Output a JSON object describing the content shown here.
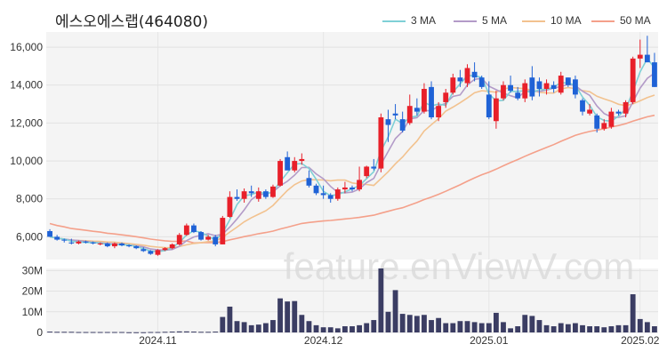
{
  "title": "에스오에스랩(464080)",
  "watermark": "feature.enViewV.com",
  "legend": [
    {
      "label": "3 MA",
      "color": "#7fd0d6"
    },
    {
      "label": "5 MA",
      "color": "#b39bc8"
    },
    {
      "label": "10 MA",
      "color": "#f2c28f"
    },
    {
      "label": "50 MA",
      "color": "#f4a08a"
    }
  ],
  "colors": {
    "up": "#e8202a",
    "down": "#1f62d6",
    "volume": "#3b3d63",
    "grid": "#e6e6e6",
    "plot_bg": "#f4f4f4"
  },
  "chart_data": {
    "type": "candlestick",
    "price_axis": {
      "ticks": [
        6000,
        8000,
        10000,
        12000,
        14000,
        16000
      ],
      "tick_labels": [
        "6,000",
        "8,000",
        "10,000",
        "12,000",
        "14,000",
        "16,000"
      ],
      "range": [
        4800,
        16800
      ]
    },
    "volume_axis": {
      "ticks": [
        0,
        10,
        20,
        30
      ],
      "tick_labels": [
        "0",
        "10M",
        "20M",
        "30M"
      ],
      "range": [
        0,
        31
      ],
      "unit": "M"
    },
    "x_tick_labels": [
      {
        "label": "2024.11",
        "index": 15
      },
      {
        "label": "2024.12",
        "index": 38
      },
      {
        "label": "2025.01",
        "index": 61
      },
      {
        "label": "2025.02",
        "index": 82
      }
    ],
    "candles": [
      [
        6300,
        6400,
        6000,
        6000
      ],
      [
        6000,
        6100,
        5800,
        5850
      ],
      [
        5850,
        5900,
        5700,
        5800
      ],
      [
        5700,
        5900,
        5600,
        5650
      ],
      [
        5650,
        5800,
        5600,
        5750
      ],
      [
        5750,
        5800,
        5650,
        5700
      ],
      [
        5700,
        5750,
        5600,
        5650
      ],
      [
        5600,
        5700,
        5550,
        5650
      ],
      [
        5650,
        5700,
        5450,
        5500
      ],
      [
        5500,
        5700,
        5400,
        5650
      ],
      [
        5650,
        5700,
        5500,
        5550
      ],
      [
        5550,
        5600,
        5450,
        5500
      ],
      [
        5500,
        5550,
        5350,
        5400
      ],
      [
        5350,
        5450,
        5200,
        5250
      ],
      [
        5250,
        5300,
        5050,
        5100
      ],
      [
        5050,
        5350,
        5000,
        5300
      ],
      [
        5300,
        5450,
        5250,
        5400
      ],
      [
        5400,
        5650,
        5350,
        5600
      ],
      [
        5600,
        6200,
        5550,
        6100
      ],
      [
        6100,
        6700,
        6050,
        6600
      ],
      [
        6600,
        6700,
        6200,
        6250
      ],
      [
        6250,
        6300,
        5800,
        5850
      ],
      [
        5850,
        6100,
        5800,
        6000
      ],
      [
        6000,
        6100,
        5500,
        5600
      ],
      [
        5600,
        7100,
        5600,
        7000
      ],
      [
        7050,
        8400,
        7000,
        8100
      ],
      [
        8100,
        8500,
        7900,
        8000
      ],
      [
        8000,
        8550,
        7800,
        8400
      ],
      [
        8400,
        8700,
        8100,
        8300
      ],
      [
        8000,
        8600,
        7850,
        8400
      ],
      [
        8400,
        8500,
        8000,
        8100
      ],
      [
        8100,
        8750,
        8050,
        8650
      ],
      [
        8700,
        10100,
        8650,
        10000
      ],
      [
        10200,
        10500,
        9600,
        9500
      ],
      [
        9500,
        10200,
        9400,
        10000
      ],
      [
        10000,
        10400,
        9800,
        10100
      ],
      [
        9100,
        9500,
        8600,
        8700
      ],
      [
        8700,
        8800,
        8200,
        8300
      ],
      [
        8300,
        8700,
        8000,
        8200
      ],
      [
        8200,
        8300,
        7800,
        8000
      ],
      [
        8000,
        8600,
        7900,
        8500
      ],
      [
        8500,
        8900,
        8300,
        8600
      ],
      [
        8600,
        8700,
        8400,
        8500
      ],
      [
        8500,
        9700,
        8400,
        9000
      ],
      [
        9200,
        9750,
        9100,
        9700
      ],
      [
        9700,
        10100,
        9500,
        9600
      ],
      [
        9600,
        12500,
        9400,
        12300
      ],
      [
        12200,
        12700,
        11000,
        11900
      ],
      [
        12500,
        13000,
        12200,
        12400
      ],
      [
        12200,
        12600,
        11500,
        11600
      ],
      [
        12000,
        13500,
        11900,
        12900
      ],
      [
        12800,
        13300,
        12400,
        12600
      ],
      [
        12600,
        14100,
        12500,
        13800
      ],
      [
        13900,
        14200,
        12200,
        12300
      ],
      [
        12300,
        13100,
        12100,
        12900
      ],
      [
        13100,
        13800,
        12800,
        13600
      ],
      [
        13600,
        14600,
        13500,
        14400
      ],
      [
        14400,
        14800,
        13900,
        14200
      ],
      [
        14100,
        15100,
        13900,
        14900
      ],
      [
        14700,
        15200,
        14200,
        14400
      ],
      [
        14400,
        14500,
        13800,
        13900
      ],
      [
        13500,
        14200,
        12200,
        12300
      ],
      [
        12100,
        13700,
        11700,
        13300
      ],
      [
        13300,
        14200,
        13200,
        14000
      ],
      [
        14000,
        14500,
        13600,
        13700
      ],
      [
        13600,
        13900,
        13200,
        13300
      ],
      [
        13300,
        14300,
        13100,
        14100
      ],
      [
        14400,
        15000,
        13200,
        13400
      ],
      [
        14200,
        14400,
        13400,
        13800
      ],
      [
        13800,
        14300,
        13500,
        14100
      ],
      [
        14000,
        14200,
        13600,
        13800
      ],
      [
        13600,
        14700,
        13500,
        14500
      ],
      [
        14400,
        14400,
        13900,
        14000
      ],
      [
        14300,
        14500,
        13300,
        13500
      ],
      [
        13200,
        13300,
        12400,
        12600
      ],
      [
        12500,
        13000,
        12400,
        12700
      ],
      [
        12400,
        12500,
        11500,
        11700
      ],
      [
        11700,
        12200,
        11600,
        12000
      ],
      [
        11800,
        12800,
        11700,
        12600
      ],
      [
        12600,
        12700,
        12400,
        12500
      ],
      [
        12500,
        13200,
        12300,
        13100
      ],
      [
        13100,
        15500,
        13000,
        15400
      ],
      [
        15400,
        16400,
        14900,
        15600
      ],
      [
        15600,
        16600,
        15300,
        15200
      ],
      [
        15200,
        15700,
        13900,
        13900
      ]
    ],
    "volume": [
      0.4,
      0.3,
      0.3,
      0.3,
      0.2,
      0.2,
      0.2,
      0.2,
      0.2,
      0.2,
      0.2,
      0.1,
      0.1,
      0.1,
      0.2,
      0.2,
      0.3,
      0.4,
      0.5,
      0.5,
      0.4,
      0.3,
      0.3,
      0.4,
      7.5,
      12.5,
      5.5,
      5.0,
      3.5,
      3.8,
      4.5,
      6.0,
      16.5,
      15.0,
      15.2,
      8.5,
      5.5,
      3.5,
      2.5,
      2.5,
      2.0,
      3.0,
      3.0,
      3.5,
      4.5,
      6.0,
      31.0,
      10.0,
      20.5,
      9.0,
      8.5,
      8.0,
      8.5,
      6.0,
      7.0,
      4.5,
      4.5,
      5.5,
      5.5,
      5.0,
      4.5,
      4.5,
      9.5,
      5.0,
      2.0,
      3.0,
      8.5,
      8.0,
      6.0,
      3.5,
      3.0,
      4.5,
      4.0,
      4.5,
      3.5,
      3.0,
      3.0,
      2.5,
      3.0,
      3.5,
      3.5,
      18.5,
      6.5,
      5.0,
      3.0
    ]
  }
}
